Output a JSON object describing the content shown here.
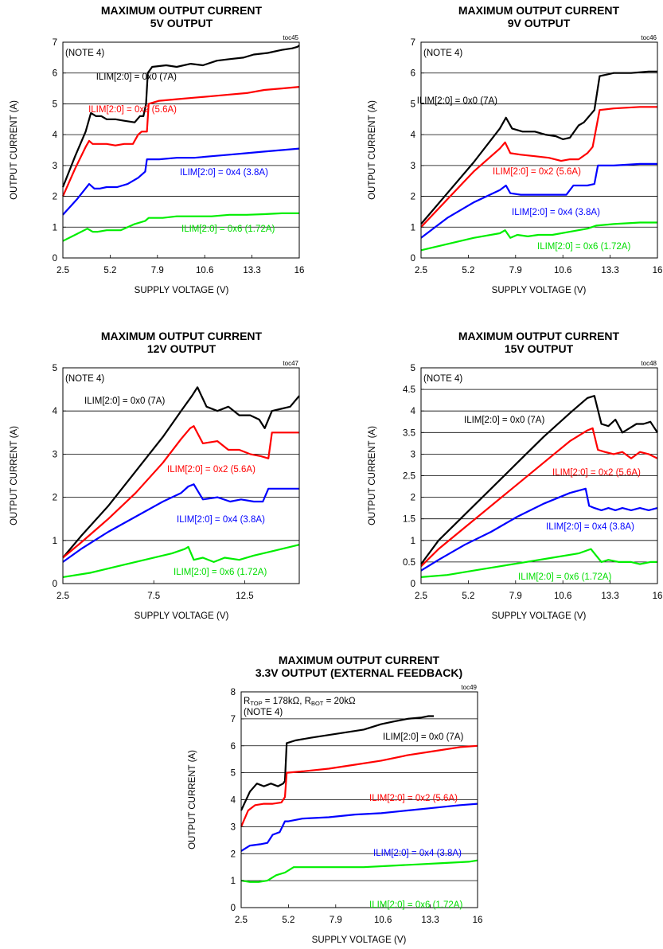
{
  "chart_data": [
    {
      "type": "line",
      "title": "MAXIMUM OUTPUT CURRENT",
      "subtitle": "5V OUTPUT",
      "toc": "toc45",
      "note": "(NOTE 4)",
      "xlabel": "SUPPLY VOLTAGE (V)",
      "ylabel": "OUTPUT CURRENT (A)",
      "xlim": [
        2.5,
        16
      ],
      "ylim": [
        0,
        7
      ],
      "xticks": [
        "2.5",
        "5.2",
        "7.9",
        "10.6",
        "13.3",
        "16"
      ],
      "yticks": [
        "0",
        "1",
        "2",
        "3",
        "4",
        "5",
        "6",
        "7"
      ],
      "grid": "horizontal",
      "series": [
        {
          "name": "ILIM[2:0] = 0x0 (7A)",
          "color": "#000000",
          "x": [
            2.5,
            3.2,
            3.8,
            4.1,
            4.4,
            4.7,
            5.0,
            5.5,
            6.0,
            6.6,
            6.9,
            7.1,
            7.25,
            7.35,
            7.6,
            8.4,
            9.0,
            9.8,
            10.5,
            11.3,
            12.0,
            12.8,
            13.4,
            14.2,
            15.0,
            15.6,
            15.9,
            16.0
          ],
          "y": [
            2.3,
            3.3,
            4.1,
            4.7,
            4.6,
            4.6,
            4.5,
            4.5,
            4.45,
            4.4,
            4.6,
            4.6,
            5.0,
            6.0,
            6.2,
            6.25,
            6.2,
            6.3,
            6.25,
            6.4,
            6.45,
            6.5,
            6.6,
            6.65,
            6.75,
            6.8,
            6.85,
            6.9
          ]
        },
        {
          "name": "ILIM[2:0] = 0x2 (5.6A)",
          "color": "#ff0000",
          "x": [
            2.5,
            3.2,
            3.8,
            4.0,
            4.2,
            4.6,
            5.0,
            5.5,
            6.0,
            6.5,
            6.8,
            7.0,
            7.3,
            7.4,
            8.0,
            9.0,
            10.0,
            11.0,
            12.0,
            13.0,
            14.0,
            15.0,
            16.0
          ],
          "y": [
            2.0,
            2.9,
            3.6,
            3.8,
            3.7,
            3.7,
            3.7,
            3.65,
            3.7,
            3.7,
            4.0,
            4.1,
            4.1,
            5.0,
            5.1,
            5.15,
            5.2,
            5.25,
            5.3,
            5.35,
            5.45,
            5.5,
            5.55
          ]
        },
        {
          "name": "ILIM[2:0] = 0x4 (3.8A)",
          "color": "#0000ff",
          "x": [
            2.5,
            3.3,
            4.0,
            4.3,
            4.6,
            5.0,
            5.6,
            6.2,
            6.8,
            7.2,
            7.3,
            8.0,
            9.0,
            10.0,
            11.0,
            12.0,
            13.0,
            14.0,
            15.0,
            16.0
          ],
          "y": [
            1.4,
            1.9,
            2.4,
            2.25,
            2.25,
            2.3,
            2.3,
            2.4,
            2.6,
            2.8,
            3.2,
            3.2,
            3.25,
            3.25,
            3.3,
            3.35,
            3.4,
            3.45,
            3.5,
            3.55
          ]
        },
        {
          "name": "ILIM[2:0] = 0x6 (1.72A)",
          "color": "#00ee00",
          "x": [
            2.5,
            3.2,
            3.9,
            4.2,
            4.5,
            5.0,
            5.8,
            6.6,
            7.2,
            7.4,
            8.2,
            9.0,
            10.0,
            11.0,
            12.0,
            13.0,
            14.0,
            15.0,
            16.0
          ],
          "y": [
            0.55,
            0.75,
            0.95,
            0.85,
            0.85,
            0.9,
            0.9,
            1.1,
            1.2,
            1.3,
            1.3,
            1.35,
            1.35,
            1.35,
            1.4,
            1.4,
            1.42,
            1.45,
            1.45
          ]
        }
      ]
    },
    {
      "type": "line",
      "title": "MAXIMUM OUTPUT CURRENT",
      "subtitle": "9V OUTPUT",
      "toc": "toc46",
      "note": "(NOTE 4)",
      "xlabel": "SUPPLY VOLTAGE (V)",
      "ylabel": "OUTPUT CURRENT (A)",
      "xlim": [
        2.5,
        16
      ],
      "ylim": [
        0,
        7
      ],
      "xticks": [
        "2.5",
        "5.2",
        "7.9",
        "10.6",
        "13.3",
        "16"
      ],
      "yticks": [
        "0",
        "1",
        "2",
        "3",
        "4",
        "5",
        "6",
        "7"
      ],
      "grid": "horizontal",
      "series": [
        {
          "name": "ILIM[2:0] = 0x0 (7A)",
          "color": "#000000",
          "x": [
            2.5,
            4.0,
            5.5,
            7.0,
            7.35,
            7.7,
            8.3,
            9.0,
            9.6,
            10.2,
            10.6,
            11.0,
            11.5,
            11.8,
            12.1,
            12.4,
            12.7,
            13.5,
            14.5,
            15.5,
            16.0
          ],
          "y": [
            1.1,
            2.1,
            3.1,
            4.2,
            4.55,
            4.2,
            4.1,
            4.1,
            4.0,
            3.95,
            3.85,
            3.9,
            4.3,
            4.4,
            4.6,
            4.8,
            5.9,
            6.0,
            6.0,
            6.05,
            6.05
          ]
        },
        {
          "name": "ILIM[2:0] = 0x2 (5.6A)",
          "color": "#ff0000",
          "x": [
            2.5,
            4.0,
            5.5,
            7.0,
            7.3,
            7.6,
            8.2,
            9.0,
            9.8,
            10.5,
            11.0,
            11.5,
            12.0,
            12.3,
            12.7,
            13.5,
            15.0,
            16.0
          ],
          "y": [
            1.0,
            1.9,
            2.8,
            3.55,
            3.75,
            3.4,
            3.35,
            3.3,
            3.25,
            3.15,
            3.2,
            3.2,
            3.4,
            3.6,
            4.8,
            4.85,
            4.9,
            4.9
          ]
        },
        {
          "name": "ILIM[2:0] = 0x4 (3.8A)",
          "color": "#0000ff",
          "x": [
            2.5,
            4.0,
            5.5,
            7.0,
            7.35,
            7.6,
            8.2,
            9.0,
            10.0,
            10.8,
            11.2,
            12.0,
            12.4,
            12.6,
            13.5,
            15.0,
            16.0
          ],
          "y": [
            0.65,
            1.3,
            1.8,
            2.2,
            2.35,
            2.1,
            2.05,
            2.05,
            2.05,
            2.05,
            2.35,
            2.35,
            2.4,
            3.0,
            3.0,
            3.05,
            3.05
          ]
        },
        {
          "name": "ILIM[2:0] = 0x6 (1.72A)",
          "color": "#00ee00",
          "x": [
            2.5,
            4.0,
            5.5,
            7.0,
            7.3,
            7.6,
            8.0,
            8.6,
            9.2,
            10.0,
            11.0,
            12.0,
            12.5,
            13.5,
            15.0,
            16.0
          ],
          "y": [
            0.25,
            0.45,
            0.65,
            0.8,
            0.9,
            0.65,
            0.75,
            0.7,
            0.75,
            0.75,
            0.85,
            0.95,
            1.05,
            1.1,
            1.15,
            1.15
          ]
        }
      ]
    },
    {
      "type": "line",
      "title": "MAXIMUM OUTPUT CURRENT",
      "subtitle": "12V OUTPUT",
      "toc": "toc47",
      "note": "(NOTE 4)",
      "xlabel": "SUPPLY VOLTAGE (V)",
      "ylabel": "OUTPUT CURRENT (A)",
      "xlim": [
        2.5,
        15.5
      ],
      "ylim": [
        0,
        5
      ],
      "xticks": [
        "2.5",
        "7.5",
        "12.5"
      ],
      "xtick_values": [
        2.5,
        7.5,
        12.5
      ],
      "yticks": [
        "0",
        "1",
        "2",
        "3",
        "4",
        "5"
      ],
      "grid": "horizontal",
      "series": [
        {
          "name": "ILIM[2:0] = 0x0 (7A)",
          "color": "#000000",
          "x": [
            2.5,
            3.5,
            5.0,
            6.5,
            8.0,
            9.0,
            9.6,
            9.9,
            10.4,
            11.0,
            11.6,
            12.2,
            12.8,
            13.3,
            13.6,
            14.0,
            14.5,
            15.0,
            15.5
          ],
          "y": [
            0.6,
            1.1,
            1.8,
            2.6,
            3.4,
            4.0,
            4.35,
            4.55,
            4.1,
            4.0,
            4.1,
            3.9,
            3.9,
            3.8,
            3.6,
            4.0,
            4.05,
            4.1,
            4.35
          ]
        },
        {
          "name": "ILIM[2:0] = 0x2 (5.6A)",
          "color": "#ff0000",
          "x": [
            2.5,
            3.5,
            5.0,
            6.5,
            8.0,
            9.0,
            9.5,
            9.7,
            10.2,
            11.0,
            11.6,
            12.2,
            12.8,
            13.4,
            13.8,
            14.0,
            15.0,
            15.5
          ],
          "y": [
            0.6,
            0.95,
            1.5,
            2.1,
            2.8,
            3.35,
            3.6,
            3.65,
            3.25,
            3.3,
            3.1,
            3.1,
            3.0,
            2.95,
            2.9,
            3.5,
            3.5,
            3.5
          ]
        },
        {
          "name": "ILIM[2:0] = 0x4 (3.8A)",
          "color": "#0000ff",
          "x": [
            2.5,
            3.5,
            5.0,
            6.5,
            8.0,
            9.0,
            9.4,
            9.7,
            10.2,
            11.0,
            11.7,
            12.3,
            13.0,
            13.5,
            13.8,
            14.5,
            15.5
          ],
          "y": [
            0.5,
            0.8,
            1.2,
            1.55,
            1.9,
            2.1,
            2.25,
            2.3,
            1.95,
            2.0,
            1.9,
            1.95,
            1.9,
            1.9,
            2.2,
            2.2,
            2.2
          ]
        },
        {
          "name": "ILIM[2:0] = 0x6 (1.72A)",
          "color": "#00ee00",
          "x": [
            2.5,
            4.0,
            5.5,
            7.0,
            8.5,
            9.2,
            9.4,
            9.7,
            10.2,
            10.8,
            11.4,
            12.2,
            13.0,
            14.0,
            15.0,
            15.5
          ],
          "y": [
            0.15,
            0.25,
            0.4,
            0.55,
            0.7,
            0.8,
            0.85,
            0.55,
            0.6,
            0.5,
            0.6,
            0.55,
            0.65,
            0.75,
            0.85,
            0.9
          ]
        }
      ]
    },
    {
      "type": "line",
      "title": "MAXIMUM OUTPUT CURRENT",
      "subtitle": "15V OUTPUT",
      "toc": "toc48",
      "note": "(NOTE 4)",
      "xlabel": "SUPPLY VOLTAGE (V)",
      "ylabel": "OUTPUT CURRENT (A)",
      "xlim": [
        2.5,
        16
      ],
      "ylim": [
        0,
        5
      ],
      "xticks": [
        "2.5",
        "5.2",
        "7.9",
        "10.6",
        "13.3",
        "16"
      ],
      "yticks": [
        "0",
        "0.5",
        "1",
        "1.5",
        "2",
        "2.5",
        "3",
        "3.5",
        "4",
        "4.5",
        "5"
      ],
      "grid": "horizontal",
      "series": [
        {
          "name": "ILIM[2:0] = 0x0 (7A)",
          "color": "#000000",
          "x": [
            2.5,
            3.5,
            5.0,
            6.5,
            8.0,
            9.5,
            11.0,
            12.0,
            12.4,
            12.8,
            13.2,
            13.6,
            14.0,
            14.4,
            14.8,
            15.2,
            15.6,
            16.0
          ],
          "y": [
            0.45,
            1.0,
            1.6,
            2.2,
            2.8,
            3.4,
            3.95,
            4.3,
            4.35,
            3.7,
            3.65,
            3.8,
            3.5,
            3.6,
            3.7,
            3.7,
            3.75,
            3.5
          ]
        },
        {
          "name": "ILIM[2:0] = 0x2 (5.6A)",
          "color": "#ff0000",
          "x": [
            2.5,
            3.5,
            5.0,
            6.5,
            8.0,
            9.5,
            11.0,
            12.0,
            12.3,
            12.6,
            13.0,
            13.5,
            14.0,
            14.5,
            15.0,
            15.5,
            16.0
          ],
          "y": [
            0.4,
            0.8,
            1.3,
            1.8,
            2.3,
            2.8,
            3.3,
            3.55,
            3.6,
            3.1,
            3.05,
            3.0,
            3.05,
            2.9,
            3.05,
            3.0,
            2.9
          ]
        },
        {
          "name": "ILIM[2:0] = 0x4 (3.8A)",
          "color": "#0000ff",
          "x": [
            2.5,
            3.5,
            5.0,
            6.5,
            8.0,
            9.5,
            11.0,
            11.9,
            12.1,
            12.4,
            12.8,
            13.2,
            13.6,
            14.0,
            14.5,
            15.0,
            15.5,
            16.0
          ],
          "y": [
            0.3,
            0.55,
            0.9,
            1.2,
            1.55,
            1.85,
            2.1,
            2.2,
            1.8,
            1.75,
            1.7,
            1.75,
            1.7,
            1.75,
            1.7,
            1.75,
            1.7,
            1.75
          ]
        },
        {
          "name": "ILIM[2:0] = 0x6 (1.72A)",
          "color": "#00ee00",
          "x": [
            2.5,
            4.0,
            5.5,
            7.0,
            8.5,
            10.0,
            11.5,
            12.2,
            12.4,
            12.8,
            13.2,
            13.8,
            14.5,
            15.0,
            15.6,
            16.0
          ],
          "y": [
            0.15,
            0.2,
            0.3,
            0.4,
            0.5,
            0.6,
            0.7,
            0.8,
            0.7,
            0.5,
            0.55,
            0.5,
            0.5,
            0.45,
            0.5,
            0.5
          ]
        }
      ]
    },
    {
      "type": "line",
      "title": "MAXIMUM OUTPUT CURRENT",
      "subtitle": "3.3V OUTPUT (EXTERNAL FEEDBACK)",
      "toc": "toc49",
      "note": "(NOTE 4)",
      "resistor_note": {
        "r_top": "R",
        "r_top_sub": "TOP",
        "r_top_val": " = 178kΩ, ",
        "r_bot": "R",
        "r_bot_sub": "BOT",
        "r_bot_val": " = 20kΩ"
      },
      "xlabel": "SUPPLY VOLTAGE (V)",
      "ylabel": "OUTPUT CURRENT (A)",
      "xlim": [
        2.5,
        16
      ],
      "ylim": [
        0,
        8
      ],
      "xticks": [
        "2.5",
        "5.2",
        "7.9",
        "10.6",
        "13.3",
        "16"
      ],
      "yticks": [
        "0",
        "1",
        "2",
        "3",
        "4",
        "5",
        "6",
        "7",
        "8"
      ],
      "grid": "horizontal",
      "series": [
        {
          "name": "ILIM[2:0] = 0x0 (7A)",
          "color": "#000000",
          "x": [
            2.5,
            3.0,
            3.4,
            3.8,
            4.2,
            4.6,
            4.9,
            5.0,
            5.1,
            5.6,
            6.5,
            7.5,
            8.5,
            9.5,
            10.5,
            11.2,
            12.0,
            12.8,
            13.2,
            13.5
          ],
          "y": [
            3.6,
            4.3,
            4.6,
            4.5,
            4.6,
            4.5,
            4.6,
            4.7,
            6.1,
            6.2,
            6.3,
            6.4,
            6.5,
            6.6,
            6.8,
            6.9,
            7.0,
            7.05,
            7.1,
            7.1
          ]
        },
        {
          "name": "ILIM[2:0] = 0x2 (5.6A)",
          "color": "#ff0000",
          "x": [
            2.5,
            2.9,
            3.3,
            3.8,
            4.3,
            4.8,
            5.0,
            5.1,
            6.0,
            7.5,
            9.0,
            10.5,
            12.0,
            13.5,
            15.0,
            16.0
          ],
          "y": [
            3.0,
            3.6,
            3.8,
            3.85,
            3.85,
            3.9,
            4.1,
            5.0,
            5.05,
            5.15,
            5.3,
            5.45,
            5.65,
            5.8,
            5.95,
            6.0
          ]
        },
        {
          "name": "ILIM[2:0] = 0x4 (3.8A)",
          "color": "#0000ff",
          "x": [
            2.5,
            3.0,
            3.6,
            4.0,
            4.3,
            4.7,
            5.0,
            5.2,
            6.0,
            7.5,
            9.0,
            10.5,
            12.0,
            13.5,
            15.0,
            16.0
          ],
          "y": [
            2.1,
            2.3,
            2.35,
            2.4,
            2.7,
            2.8,
            3.2,
            3.2,
            3.3,
            3.35,
            3.45,
            3.5,
            3.6,
            3.7,
            3.8,
            3.85
          ]
        },
        {
          "name": "ILIM[2:0] = 0x6 (1.72A)",
          "color": "#00ee00",
          "x": [
            2.5,
            3.0,
            3.5,
            4.0,
            4.5,
            5.0,
            5.5,
            6.5,
            8.0,
            9.5,
            11.0,
            12.5,
            14.0,
            15.5,
            16.0
          ],
          "y": [
            1.0,
            0.95,
            0.95,
            1.0,
            1.2,
            1.3,
            1.5,
            1.5,
            1.5,
            1.5,
            1.55,
            1.6,
            1.65,
            1.7,
            1.75
          ]
        }
      ]
    }
  ]
}
